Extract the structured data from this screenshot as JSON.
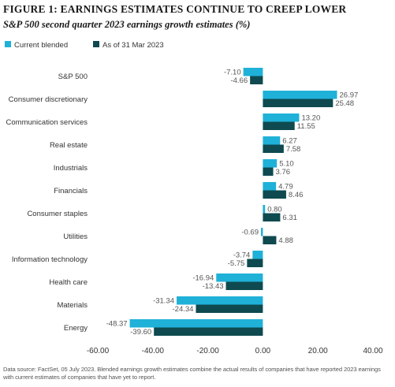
{
  "figure": {
    "title": "FIGURE 1: EARNINGS ESTIMATES CONTINUE TO CREEP LOWER",
    "subtitle": "S&P 500 second quarter 2023 earnings growth estimates (%)",
    "source_note": "Data source: FactSet, 05 July 2023. Blended earnings growth estimates combine the actual results of companies that have reported 2023 earnings with current estimates of companies that have yet to report."
  },
  "colors": {
    "current_blended": "#1fb1d8",
    "as_of_31_mar": "#0e4a50",
    "axis": "#9a9a9a",
    "text": "#333333",
    "value_label": "#555555"
  },
  "chart_data": {
    "type": "bar",
    "orientation": "horizontal",
    "categories": [
      "S&P 500",
      "Consumer discretionary",
      "Communication services",
      "Real estate",
      "Industrials",
      "Financials",
      "Consumer staples",
      "Utilities",
      "Information technology",
      "Health care",
      "Materials",
      "Energy"
    ],
    "series": [
      {
        "name": "Current blended",
        "values": [
          -7.1,
          26.97,
          13.2,
          6.27,
          5.1,
          4.79,
          0.8,
          -0.69,
          -3.74,
          -16.94,
          -31.34,
          -48.37
        ],
        "labels": [
          "-7.10",
          "26.97",
          "13.20",
          "6.27",
          "5.10",
          "4.79",
          "0.80",
          "-0.69",
          "-3.74",
          "-16.94",
          "-31.34",
          "-48.37"
        ]
      },
      {
        "name": "As of 31 Mar 2023",
        "values": [
          -4.66,
          25.48,
          11.55,
          7.58,
          3.76,
          8.46,
          6.31,
          4.88,
          -5.75,
          -13.43,
          -24.34,
          -39.6
        ],
        "labels": [
          "-4.66",
          "25.48",
          "11.55",
          "7.58",
          "3.76",
          "8.46",
          "6.31",
          "4.88",
          "-5.75",
          "-13.43",
          "-24.34",
          "-39.60"
        ]
      }
    ],
    "xlim": [
      -60,
      40
    ],
    "xticks": [
      -60,
      -40,
      -20,
      0,
      20,
      40
    ],
    "xtick_labels": [
      "-60.00",
      "-40.00",
      "-20.00",
      "0.00",
      "20.00",
      "40.00"
    ],
    "grid": false,
    "legend_position": "top-left"
  }
}
